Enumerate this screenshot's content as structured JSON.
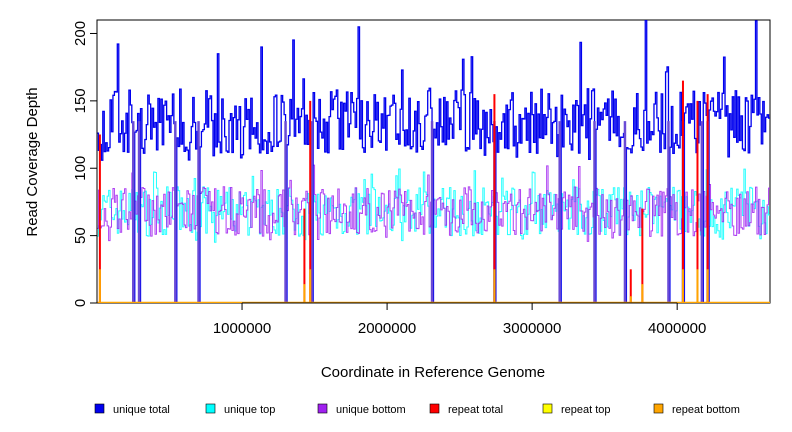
{
  "chart_data": {
    "type": "line",
    "title": "",
    "xlabel": "Coordinate in Reference Genome",
    "ylabel": "Read Coverage Depth",
    "xlim": [
      0,
      4640000
    ],
    "ylim": [
      0,
      210
    ],
    "x_ticks": [
      1000000,
      2000000,
      3000000,
      4000000
    ],
    "x_tick_labels": [
      "1000000",
      "2000000",
      "3000000",
      "4000000"
    ],
    "y_ticks": [
      0,
      50,
      100,
      150,
      200
    ],
    "y_tick_labels": [
      "0",
      "50",
      "100",
      "150",
      "200"
    ],
    "grid": false,
    "legend_position": "bottom",
    "bin_size": 10000,
    "series": [
      {
        "name": "unique total",
        "color": "#0000ee",
        "approx_mean": 135,
        "approx_min": 105,
        "approx_max": 210
      },
      {
        "name": "unique top",
        "color": "#00ffff",
        "approx_mean": 68,
        "approx_min": 45,
        "approx_max": 100
      },
      {
        "name": "unique bottom",
        "color": "#a020f0",
        "approx_mean": 68,
        "approx_min": 45,
        "approx_max": 105
      },
      {
        "name": "repeat total",
        "color": "#ff0000",
        "approx_mean": 0,
        "approx_min": 0,
        "approx_max": 165
      },
      {
        "name": "repeat top",
        "color": "#ffff00",
        "approx_mean": 0,
        "approx_min": 0,
        "approx_max": 30
      },
      {
        "name": "repeat bottom",
        "color": "#ffa500",
        "approx_mean": 0,
        "approx_min": 0,
        "approx_max": 30
      }
    ],
    "coverage_gaps": [
      250000,
      290000,
      540000,
      700000,
      1300000,
      1480000,
      2310000,
      2740000,
      3190000,
      3430000,
      3640000,
      3940000,
      4040000,
      4170000,
      4210000
    ],
    "repeat_peaks": [
      {
        "x": 20000,
        "value": 125
      },
      {
        "x": 1430000,
        "value": 70
      },
      {
        "x": 1470000,
        "value": 150
      },
      {
        "x": 2740000,
        "value": 155
      },
      {
        "x": 3680000,
        "value": 25
      },
      {
        "x": 3760000,
        "value": 70
      },
      {
        "x": 4040000,
        "value": 165
      },
      {
        "x": 4140000,
        "value": 150
      },
      {
        "x": 4210000,
        "value": 155
      }
    ]
  }
}
